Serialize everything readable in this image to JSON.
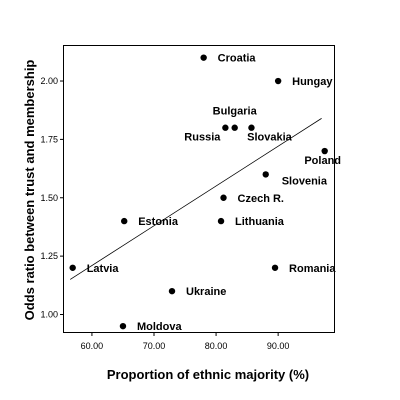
{
  "chart_data": {
    "type": "scatter",
    "title": "",
    "xlabel": "Proportion of ethnic majority (%)",
    "ylabel": "Odds ratio between trust and membership",
    "xlim": [
      55.5,
      99
    ],
    "ylim": [
      0.925,
      2.15
    ],
    "x_ticks": [
      60,
      70,
      80,
      90
    ],
    "x_tick_labels": [
      "60.00",
      "70.00",
      "80.00",
      "90.00"
    ],
    "y_ticks": [
      1.0,
      1.25,
      1.5,
      1.75,
      2.0
    ],
    "y_tick_labels": [
      "1.00",
      "1.25",
      "1.50",
      "1.75",
      "2.00"
    ],
    "grid": false,
    "legend": "none",
    "points": [
      {
        "label": "Croatia",
        "x": 78.0,
        "y": 2.1
      },
      {
        "label": "Hungay",
        "x": 90.0,
        "y": 2.0
      },
      {
        "label": "Bulgaria",
        "x": 83.0,
        "y": 1.8
      },
      {
        "label": "Russia",
        "x": 81.5,
        "y": 1.8
      },
      {
        "label": "Slovakia",
        "x": 85.7,
        "y": 1.8
      },
      {
        "label": "Poland",
        "x": 97.5,
        "y": 1.7
      },
      {
        "label": "Slovenia",
        "x": 88.0,
        "y": 1.6
      },
      {
        "label": "Czech R.",
        "x": 81.2,
        "y": 1.5
      },
      {
        "label": "Estonia",
        "x": 65.2,
        "y": 1.4
      },
      {
        "label": "Lithuania",
        "x": 80.8,
        "y": 1.4
      },
      {
        "label": "Latvia",
        "x": 56.9,
        "y": 1.2
      },
      {
        "label": "Romania",
        "x": 89.5,
        "y": 1.2
      },
      {
        "label": "Ukraine",
        "x": 72.9,
        "y": 1.1
      },
      {
        "label": "Moldova",
        "x": 65.0,
        "y": 0.95
      }
    ],
    "fit_line": {
      "x": [
        56.5,
        97.0
      ],
      "y": [
        1.15,
        1.84
      ]
    },
    "colors": {
      "background": "#ffffff",
      "points": "#000000",
      "line": "#000000"
    }
  }
}
